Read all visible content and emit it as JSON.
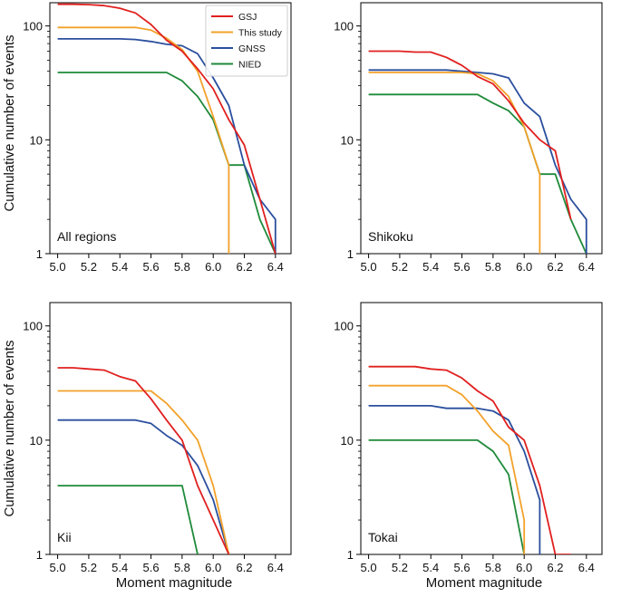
{
  "figure": {
    "ylabel": "Cumulative number of events",
    "xlabel": "Moment magnitude"
  },
  "colors": {
    "GSJ": "#e0201f",
    "This study": "#f2a22a",
    "GNSS": "#2b4f9e",
    "NIED": "#1f8a3a"
  },
  "chart_data": [
    {
      "type": "line",
      "panel_label": "All regions",
      "xlim": [
        4.95,
        6.5
      ],
      "ylim": [
        1,
        160
      ],
      "yscale": "log",
      "xticks": [
        "5.0",
        "5.2",
        "5.4",
        "5.6",
        "5.8",
        "6.0",
        "6.2",
        "6.4"
      ],
      "yticks": [
        "1",
        "10",
        "100"
      ],
      "legend": {
        "placement": "top-right",
        "entries": [
          "GSJ",
          "This study",
          "GNSS",
          "NIED"
        ]
      },
      "series": [
        {
          "name": "GSJ",
          "points": [
            [
              5.0,
              155
            ],
            [
              5.1,
              155
            ],
            [
              5.2,
              154
            ],
            [
              5.3,
              151
            ],
            [
              5.4,
              143
            ],
            [
              5.5,
              130
            ],
            [
              5.6,
              103
            ],
            [
              5.7,
              75
            ],
            [
              5.8,
              60
            ],
            [
              5.9,
              42
            ],
            [
              6.0,
              28
            ],
            [
              6.1,
              15
            ],
            [
              6.2,
              9
            ],
            [
              6.3,
              3
            ],
            [
              6.4,
              1
            ]
          ]
        },
        {
          "name": "This study",
          "points": [
            [
              5.0,
              97
            ],
            [
              5.1,
              97
            ],
            [
              5.2,
              97
            ],
            [
              5.3,
              97
            ],
            [
              5.4,
              97
            ],
            [
              5.5,
              97
            ],
            [
              5.6,
              92
            ],
            [
              5.7,
              78
            ],
            [
              5.8,
              62
            ],
            [
              5.9,
              40
            ],
            [
              6.0,
              16
            ],
            [
              6.1,
              6
            ],
            [
              6.1,
              1
            ]
          ]
        },
        {
          "name": "GNSS",
          "points": [
            [
              5.0,
              77
            ],
            [
              5.1,
              77
            ],
            [
              5.2,
              77
            ],
            [
              5.3,
              77
            ],
            [
              5.4,
              77
            ],
            [
              5.5,
              76
            ],
            [
              5.6,
              73
            ],
            [
              5.7,
              69
            ],
            [
              5.8,
              67
            ],
            [
              5.9,
              57
            ],
            [
              6.0,
              35
            ],
            [
              6.1,
              20
            ],
            [
              6.2,
              6
            ],
            [
              6.3,
              3
            ],
            [
              6.4,
              2
            ],
            [
              6.4,
              1
            ]
          ]
        },
        {
          "name": "NIED",
          "points": [
            [
              5.0,
              39
            ],
            [
              5.1,
              39
            ],
            [
              5.2,
              39
            ],
            [
              5.3,
              39
            ],
            [
              5.4,
              39
            ],
            [
              5.5,
              39
            ],
            [
              5.6,
              39
            ],
            [
              5.7,
              39
            ],
            [
              5.8,
              33
            ],
            [
              5.9,
              24
            ],
            [
              6.0,
              15
            ],
            [
              6.1,
              6
            ],
            [
              6.2,
              6
            ],
            [
              6.3,
              2
            ],
            [
              6.4,
              1
            ]
          ]
        }
      ]
    },
    {
      "type": "line",
      "panel_label": "Shikoku",
      "xlim": [
        4.95,
        6.5
      ],
      "ylim": [
        1,
        160
      ],
      "yscale": "log",
      "xticks": [
        "5.0",
        "5.2",
        "5.4",
        "5.6",
        "5.8",
        "6.0",
        "6.2",
        "6.4"
      ],
      "yticks": [
        "1",
        "10",
        "100"
      ],
      "series": [
        {
          "name": "GSJ",
          "points": [
            [
              5.0,
              60
            ],
            [
              5.1,
              60
            ],
            [
              5.2,
              60
            ],
            [
              5.3,
              59
            ],
            [
              5.4,
              59
            ],
            [
              5.5,
              53
            ],
            [
              5.6,
              45
            ],
            [
              5.7,
              36
            ],
            [
              5.8,
              31
            ],
            [
              5.9,
              22
            ],
            [
              6.0,
              14
            ],
            [
              6.1,
              10
            ],
            [
              6.2,
              8
            ],
            [
              6.3,
              2
            ]
          ]
        },
        {
          "name": "This study",
          "points": [
            [
              5.0,
              39
            ],
            [
              5.1,
              39
            ],
            [
              5.2,
              39
            ],
            [
              5.3,
              39
            ],
            [
              5.4,
              39
            ],
            [
              5.5,
              39
            ],
            [
              5.6,
              39
            ],
            [
              5.7,
              38
            ],
            [
              5.8,
              33
            ],
            [
              5.9,
              24
            ],
            [
              6.0,
              13
            ],
            [
              6.1,
              5
            ],
            [
              6.1,
              1
            ]
          ]
        },
        {
          "name": "GNSS",
          "points": [
            [
              5.0,
              41
            ],
            [
              5.1,
              41
            ],
            [
              5.2,
              41
            ],
            [
              5.3,
              41
            ],
            [
              5.4,
              41
            ],
            [
              5.5,
              41
            ],
            [
              5.6,
              40
            ],
            [
              5.7,
              39
            ],
            [
              5.8,
              38
            ],
            [
              5.9,
              35
            ],
            [
              6.0,
              21
            ],
            [
              6.1,
              16
            ],
            [
              6.2,
              6
            ],
            [
              6.3,
              3
            ],
            [
              6.4,
              2
            ],
            [
              6.4,
              1
            ]
          ]
        },
        {
          "name": "NIED",
          "points": [
            [
              5.0,
              25
            ],
            [
              5.1,
              25
            ],
            [
              5.2,
              25
            ],
            [
              5.3,
              25
            ],
            [
              5.4,
              25
            ],
            [
              5.5,
              25
            ],
            [
              5.6,
              25
            ],
            [
              5.7,
              25
            ],
            [
              5.8,
              21
            ],
            [
              5.9,
              18
            ],
            [
              6.0,
              13
            ],
            [
              6.1,
              5
            ],
            [
              6.2,
              5
            ],
            [
              6.3,
              2
            ],
            [
              6.4,
              1
            ]
          ]
        }
      ]
    },
    {
      "type": "line",
      "panel_label": "Kii",
      "xlim": [
        4.95,
        6.5
      ],
      "ylim": [
        1,
        160
      ],
      "yscale": "log",
      "xticks": [
        "5.0",
        "5.2",
        "5.4",
        "5.6",
        "5.8",
        "6.0",
        "6.2",
        "6.4"
      ],
      "yticks": [
        "1",
        "10",
        "100"
      ],
      "series": [
        {
          "name": "GSJ",
          "points": [
            [
              5.0,
              43
            ],
            [
              5.1,
              43
            ],
            [
              5.2,
              42
            ],
            [
              5.3,
              41
            ],
            [
              5.4,
              36
            ],
            [
              5.5,
              33
            ],
            [
              5.6,
              23
            ],
            [
              5.7,
              15
            ],
            [
              5.8,
              10
            ],
            [
              5.9,
              4
            ],
            [
              6.0,
              2
            ],
            [
              6.1,
              1
            ]
          ]
        },
        {
          "name": "This study",
          "points": [
            [
              5.0,
              27
            ],
            [
              5.1,
              27
            ],
            [
              5.2,
              27
            ],
            [
              5.3,
              27
            ],
            [
              5.4,
              27
            ],
            [
              5.5,
              27
            ],
            [
              5.6,
              27
            ],
            [
              5.7,
              21
            ],
            [
              5.8,
              15
            ],
            [
              5.9,
              10
            ],
            [
              6.0,
              4
            ],
            [
              6.1,
              1
            ]
          ]
        },
        {
          "name": "GNSS",
          "points": [
            [
              5.0,
              15
            ],
            [
              5.1,
              15
            ],
            [
              5.2,
              15
            ],
            [
              5.3,
              15
            ],
            [
              5.4,
              15
            ],
            [
              5.5,
              15
            ],
            [
              5.6,
              14
            ],
            [
              5.7,
              11
            ],
            [
              5.8,
              9
            ],
            [
              5.9,
              6
            ],
            [
              6.0,
              3
            ],
            [
              6.1,
              1
            ]
          ]
        },
        {
          "name": "NIED",
          "points": [
            [
              5.0,
              4
            ],
            [
              5.1,
              4
            ],
            [
              5.2,
              4
            ],
            [
              5.3,
              4
            ],
            [
              5.4,
              4
            ],
            [
              5.5,
              4
            ],
            [
              5.6,
              4
            ],
            [
              5.7,
              4
            ],
            [
              5.8,
              4
            ],
            [
              5.9,
              1
            ]
          ]
        }
      ]
    },
    {
      "type": "line",
      "panel_label": "Tokai",
      "xlim": [
        4.95,
        6.5
      ],
      "ylim": [
        1,
        160
      ],
      "yscale": "log",
      "xticks": [
        "5.0",
        "5.2",
        "5.4",
        "5.6",
        "5.8",
        "6.0",
        "6.2",
        "6.4"
      ],
      "yticks": [
        "1",
        "10",
        "100"
      ],
      "series": [
        {
          "name": "GSJ",
          "points": [
            [
              5.0,
              44
            ],
            [
              5.1,
              44
            ],
            [
              5.2,
              44
            ],
            [
              5.3,
              44
            ],
            [
              5.4,
              42
            ],
            [
              5.5,
              41
            ],
            [
              5.6,
              35
            ],
            [
              5.7,
              27
            ],
            [
              5.8,
              22
            ],
            [
              5.9,
              13
            ],
            [
              6.0,
              10
            ],
            [
              6.1,
              4
            ],
            [
              6.2,
              1
            ],
            [
              6.3,
              1
            ]
          ]
        },
        {
          "name": "This study",
          "points": [
            [
              5.0,
              30
            ],
            [
              5.1,
              30
            ],
            [
              5.2,
              30
            ],
            [
              5.3,
              30
            ],
            [
              5.4,
              30
            ],
            [
              5.5,
              30
            ],
            [
              5.6,
              25
            ],
            [
              5.7,
              18
            ],
            [
              5.8,
              12
            ],
            [
              5.9,
              9
            ],
            [
              6.0,
              2
            ],
            [
              6.0,
              1
            ]
          ]
        },
        {
          "name": "GNSS",
          "points": [
            [
              5.0,
              20
            ],
            [
              5.1,
              20
            ],
            [
              5.2,
              20
            ],
            [
              5.3,
              20
            ],
            [
              5.4,
              20
            ],
            [
              5.5,
              19
            ],
            [
              5.6,
              19
            ],
            [
              5.7,
              19
            ],
            [
              5.8,
              18
            ],
            [
              5.9,
              15
            ],
            [
              6.0,
              8
            ],
            [
              6.1,
              3
            ],
            [
              6.1,
              1
            ]
          ]
        },
        {
          "name": "NIED",
          "points": [
            [
              5.0,
              10
            ],
            [
              5.1,
              10
            ],
            [
              5.2,
              10
            ],
            [
              5.3,
              10
            ],
            [
              5.4,
              10
            ],
            [
              5.5,
              10
            ],
            [
              5.6,
              10
            ],
            [
              5.7,
              10
            ],
            [
              5.8,
              8
            ],
            [
              5.9,
              5
            ],
            [
              6.0,
              1
            ]
          ]
        }
      ]
    }
  ]
}
